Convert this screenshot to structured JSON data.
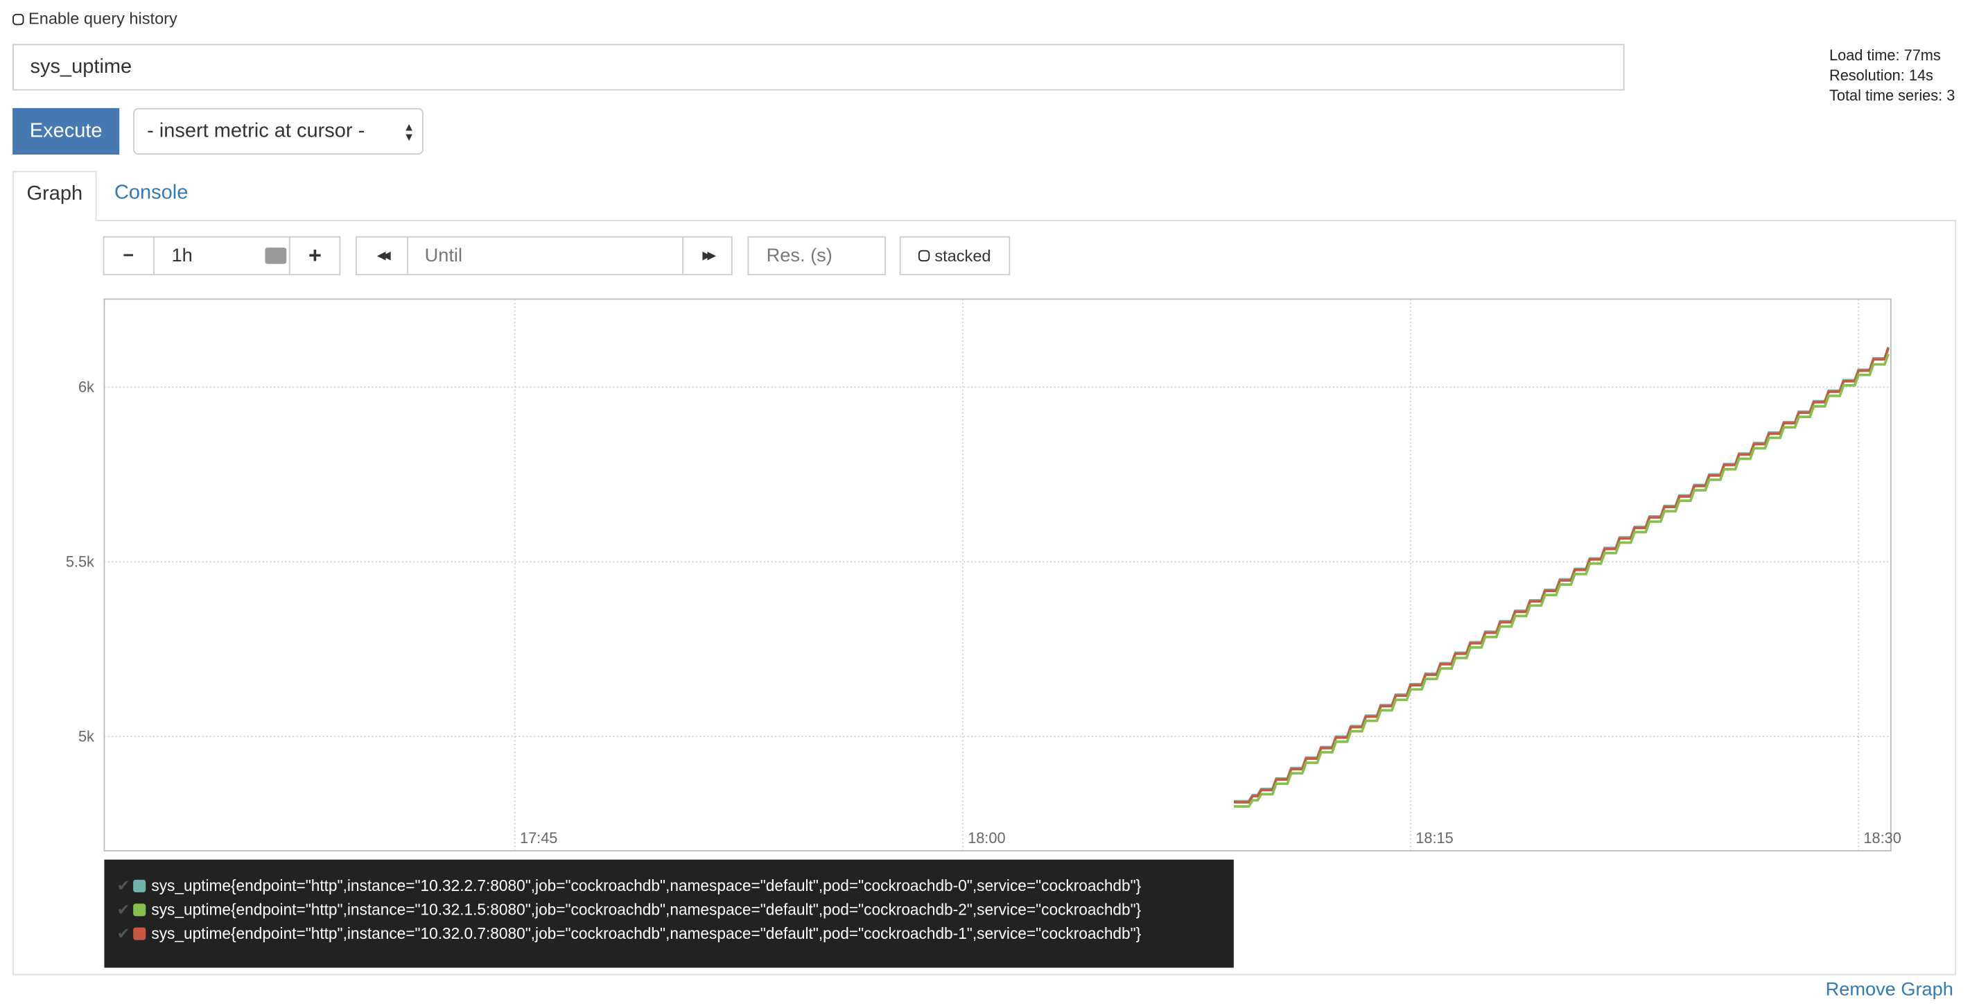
{
  "header": {
    "enable_history_label": "Enable query history",
    "query": "sys_uptime",
    "execute_label": "Execute",
    "metric_select": "- insert metric at cursor -",
    "stats": {
      "load_time": "Load time: 77ms",
      "resolution": "Resolution: 14s",
      "total_series": "Total time series: 3"
    }
  },
  "tabs": [
    {
      "label": "Graph",
      "active": true
    },
    {
      "label": "Console",
      "active": false
    }
  ],
  "controls": {
    "minus": "−",
    "range": "1h",
    "plus": "+",
    "back": "◀◀",
    "until_placeholder": "Until",
    "forward": "▶▶",
    "res_placeholder": "Res. (s)",
    "stacked_label": "stacked"
  },
  "remove_graph": "Remove Graph",
  "chart_data": {
    "type": "line",
    "grid": true,
    "stacked": false,
    "x_ticks": [
      "17:45",
      "18:00",
      "18:15",
      "18:30"
    ],
    "xlim": [
      "17:31:15",
      "18:31:05"
    ],
    "y_ticks": [
      "5k",
      "5.5k",
      "6k"
    ],
    "y_tick_values": [
      5000,
      5500,
      6000
    ],
    "ylim": [
      4673,
      6252
    ],
    "x": [
      "18:09:25",
      "18:10",
      "18:11",
      "18:12",
      "18:13",
      "18:14",
      "18:15",
      "18:16",
      "18:17",
      "18:18",
      "18:19",
      "18:20",
      "18:21",
      "18:22",
      "18:23",
      "18:24",
      "18:25",
      "18:26",
      "18:27",
      "18:28",
      "18:29",
      "18:30",
      "18:31"
    ],
    "series": [
      {
        "name": "sys_uptime{endpoint=\"http\",instance=\"10.32.2.7:8080\",job=\"cockroachdb\",namespace=\"default\",pod=\"cockroachdb-0\",service=\"cockroachdb\"}",
        "color": "#6fb3ac",
        "values": [
          4815,
          4850,
          4910,
          4970,
          5030,
          5090,
          5150,
          5210,
          5270,
          5330,
          5390,
          5450,
          5510,
          5570,
          5630,
          5690,
          5750,
          5810,
          5870,
          5930,
          5990,
          6050,
          6115
        ]
      },
      {
        "name": "sys_uptime{endpoint=\"http\",instance=\"10.32.1.5:8080\",job=\"cockroachdb\",namespace=\"default\",pod=\"cockroachdb-2\",service=\"cockroachdb\"}",
        "color": "#86bf4a",
        "values": [
          4800,
          4835,
          4895,
          4955,
          5015,
          5075,
          5135,
          5195,
          5255,
          5315,
          5375,
          5435,
          5495,
          5555,
          5615,
          5675,
          5735,
          5795,
          5855,
          5915,
          5975,
          6035,
          6095
        ]
      },
      {
        "name": "sys_uptime{endpoint=\"http\",instance=\"10.32.0.7:8080\",job=\"cockroachdb\",namespace=\"default\",pod=\"cockroachdb-1\",service=\"cockroachdb\"}",
        "color": "#c9583f",
        "values": [
          4812,
          4847,
          4907,
          4967,
          5027,
          5087,
          5147,
          5207,
          5267,
          5327,
          5387,
          5447,
          5507,
          5567,
          5627,
          5687,
          5747,
          5807,
          5867,
          5927,
          5987,
          6047,
          6112
        ]
      }
    ]
  }
}
